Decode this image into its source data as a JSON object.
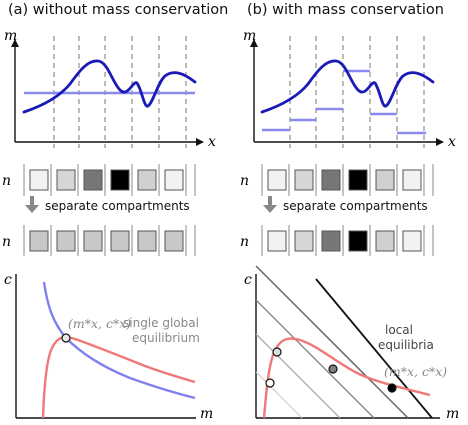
{
  "panels": {
    "a": {
      "title": "(a) without mass conservation",
      "top_plot": {
        "y_axis": "m",
        "x_axis": "x"
      },
      "compartments_label": "n",
      "arrow_label": "separate compartments",
      "bottom_plot": {
        "y_axis": "c",
        "x_axis": "m",
        "point_label": "(m*x, c*x)",
        "annotation_line1": "single global",
        "annotation_line2": "equilibrium"
      }
    },
    "b": {
      "title": "(b) with mass conservation",
      "top_plot": {
        "y_axis": "m",
        "x_axis": "x"
      },
      "compartments_label": "n",
      "arrow_label": "separate compartments",
      "bottom_plot": {
        "y_axis": "c",
        "x_axis": "m",
        "point_label": "(m*x, c*x)",
        "annotation_line1": "local",
        "annotation_line2": "equilibria"
      }
    }
  },
  "colors": {
    "profile_curve": "#1a1ab8",
    "mean_line": "#8a8af0",
    "red_curve": "#f07878",
    "blue_curve": "#8080f0",
    "axis": "#111111",
    "dashed": "#777777"
  }
}
